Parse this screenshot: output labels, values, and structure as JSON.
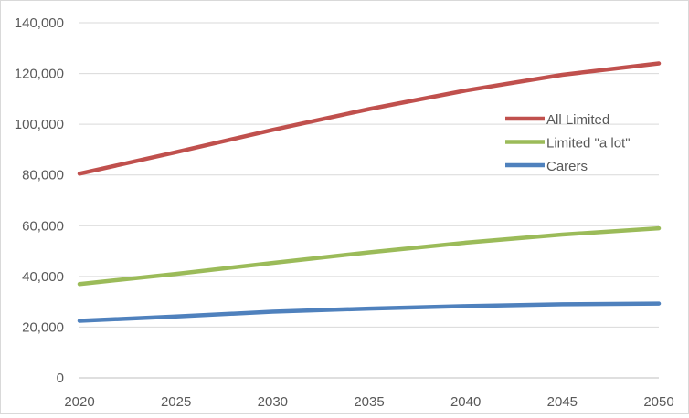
{
  "chart_data": {
    "type": "line",
    "title": "",
    "xlabel": "",
    "ylabel": "",
    "x": [
      2020,
      2025,
      2030,
      2035,
      2040,
      2045,
      2050
    ],
    "xlim": [
      2020,
      2050
    ],
    "ylim": [
      0,
      140000
    ],
    "x_ticks": [
      "2020",
      "2025",
      "2030",
      "2035",
      "2040",
      "2045",
      "2050"
    ],
    "y_ticks": [
      "0",
      "20,000",
      "40,000",
      "60,000",
      "80,000",
      "100,000",
      "120,000",
      "140,000"
    ],
    "grid": true,
    "legend_position": "right",
    "series": [
      {
        "name": "All Limited",
        "color": "#c0504d",
        "values": [
          80500,
          89000,
          97800,
          106000,
          113300,
          119500,
          124000
        ]
      },
      {
        "name": "Limited \"a lot\"",
        "color": "#9bbb59",
        "values": [
          37000,
          41000,
          45300,
          49500,
          53300,
          56500,
          59000
        ]
      },
      {
        "name": "Carers",
        "color": "#4f81bd",
        "values": [
          22500,
          24200,
          26100,
          27300,
          28300,
          29000,
          29300
        ]
      }
    ]
  }
}
